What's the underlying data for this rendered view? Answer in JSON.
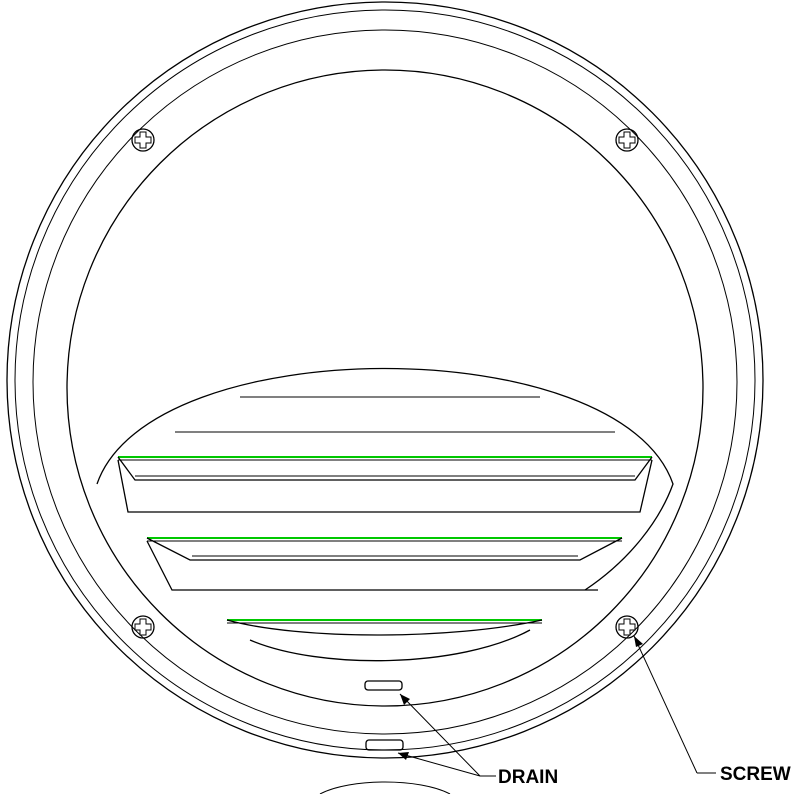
{
  "labels": {
    "drain": "DRAIN",
    "screw": "SCREW"
  },
  "colors": {
    "line": "#000000",
    "highlight": "#00c800",
    "background": "#ffffff"
  }
}
